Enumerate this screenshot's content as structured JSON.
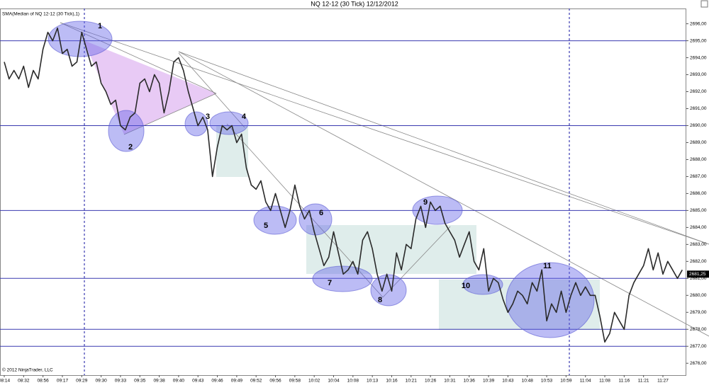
{
  "chart_data": {
    "type": "line",
    "title": "NQ 12-12 (30 Tick)  12/12/2012",
    "indicator_label": "SMA(Median of NQ 12-12 (30 Tick),1)",
    "copyright": "© 2012 NinjaTrader, LLC",
    "categories": [
      "08:14",
      null,
      null,
      null,
      "08:32",
      null,
      null,
      null,
      "08:56",
      null,
      null,
      null,
      "09:17",
      null,
      null,
      null,
      "09:29",
      null,
      null,
      null,
      "09:30",
      null,
      null,
      null,
      "09:33",
      null,
      null,
      null,
      "09:35",
      null,
      null,
      null,
      "09:38",
      null,
      null,
      null,
      "09:40",
      null,
      null,
      null,
      "09:43",
      null,
      null,
      null,
      "09:46",
      null,
      null,
      null,
      "09:49",
      null,
      null,
      null,
      "09:52",
      null,
      null,
      null,
      "09:56",
      null,
      null,
      null,
      "09:58",
      null,
      null,
      null,
      "10:02",
      null,
      null,
      null,
      "10:04",
      null,
      null,
      null,
      "10:08",
      null,
      null,
      null,
      "10:13",
      null,
      null,
      null,
      "10:16",
      null,
      null,
      null,
      "10:21",
      null,
      null,
      null,
      "10:26",
      null,
      null,
      null,
      "10:31",
      null,
      null,
      null,
      "10:36",
      null,
      null,
      null,
      "10:39",
      null,
      null,
      null,
      "10:43",
      null,
      null,
      null,
      "10:48",
      null,
      null,
      null,
      "10:53",
      null,
      null,
      null,
      "10:59",
      null,
      null,
      null,
      "11:04",
      null,
      null,
      null,
      "11:08",
      null,
      null,
      null,
      "11:16",
      null,
      null,
      null,
      "11:21",
      null,
      null,
      null,
      "11:27",
      null,
      null,
      null,
      null
    ],
    "series": [
      {
        "color": "#2a2a2a",
        "values": [
          2693.75,
          2692.75,
          2693.25,
          2692.75,
          2693.5,
          2692.25,
          2693.25,
          2692.75,
          2694.5,
          2695.5,
          2695.0,
          2695.75,
          2694.25,
          2694.5,
          2693.5,
          2693.75,
          2695.5,
          2694.5,
          2693.5,
          2693.75,
          2692.5,
          2692.0,
          2691.25,
          2691.5,
          2690.0,
          2689.75,
          2690.5,
          2690.75,
          2692.5,
          2692.75,
          2692.0,
          2693.0,
          2692.5,
          2690.75,
          2692.0,
          2693.75,
          2694.0,
          2693.25,
          2692.0,
          2691.0,
          2690.0,
          2690.5,
          2689.75,
          2687.0,
          2688.75,
          2690.0,
          2689.75,
          2690.0,
          2689.0,
          2689.5,
          2687.5,
          2686.5,
          2686.25,
          2686.75,
          2685.5,
          2685.0,
          2686.0,
          2685.0,
          2684.0,
          2685.0,
          2686.5,
          2685.25,
          2684.5,
          2685.0,
          2683.75,
          2682.75,
          2681.75,
          2682.25,
          2683.75,
          2682.5,
          2681.25,
          2681.5,
          2682.0,
          2681.25,
          2683.25,
          2683.75,
          2682.75,
          2681.25,
          2680.25,
          2681.25,
          2680.25,
          2682.5,
          2681.5,
          2683.0,
          2682.75,
          2684.5,
          2685.25,
          2684.0,
          2685.5,
          2685.0,
          2685.25,
          2684.25,
          2683.75,
          2683.25,
          2682.25,
          2683.0,
          2683.75,
          2682.0,
          2681.5,
          2682.75,
          2680.25,
          2681.0,
          2680.75,
          2679.75,
          2679.0,
          2679.5,
          2680.25,
          2680.0,
          2679.5,
          2680.75,
          2680.25,
          2681.5,
          2678.5,
          2679.5,
          2679.0,
          2680.25,
          2679.0,
          2680.0,
          2680.75,
          2680.0,
          2680.5,
          2680.0,
          2680.0,
          2678.75,
          2677.25,
          2677.75,
          2679.0,
          2678.5,
          2678.0,
          2680.0,
          2680.75,
          2681.25,
          2681.75,
          2682.75,
          2681.5,
          2682.5,
          2681.25,
          2682.0,
          2681.5,
          2681.0,
          2681.5
        ]
      }
    ],
    "ylim": [
      2675.3,
      2696.9
    ],
    "yticks": [
      {
        "value": 2676,
        "label": "2676,00"
      },
      {
        "value": 2677,
        "label": "2677,00"
      },
      {
        "value": 2678,
        "label": "2678,00"
      },
      {
        "value": 2679,
        "label": "2679,00"
      },
      {
        "value": 2680,
        "label": "2680,00"
      },
      {
        "value": 2681,
        "label": "2681,00"
      },
      {
        "value": 2682,
        "label": "2682,00"
      },
      {
        "value": 2683,
        "label": "2683,00"
      },
      {
        "value": 2684,
        "label": "2684,00"
      },
      {
        "value": 2685,
        "label": "2685,00"
      },
      {
        "value": 2686,
        "label": "2686,00"
      },
      {
        "value": 2687,
        "label": "2687,00"
      },
      {
        "value": 2688,
        "label": "2688,00"
      },
      {
        "value": 2689,
        "label": "2689,00"
      },
      {
        "value": 2690,
        "label": "2690,00"
      },
      {
        "value": 2691,
        "label": "2691,00"
      },
      {
        "value": 2692,
        "label": "2692,00"
      },
      {
        "value": 2693,
        "label": "2693,00"
      },
      {
        "value": 2694,
        "label": "2694,00"
      },
      {
        "value": 2695,
        "label": "2695,00"
      },
      {
        "value": 2696,
        "label": "2696,00"
      }
    ],
    "last_price": {
      "value": 2681.25,
      "label": "2681,25"
    },
    "horizontal_lines": [
      2695,
      2690,
      2685,
      2681,
      2678,
      2677
    ],
    "horizontal_line_color": "#3a3ab0",
    "annotations": [
      "1",
      "2",
      "3",
      "4",
      "5",
      "6",
      "7",
      "8",
      "9",
      "10",
      "11"
    ],
    "grid": false
  }
}
